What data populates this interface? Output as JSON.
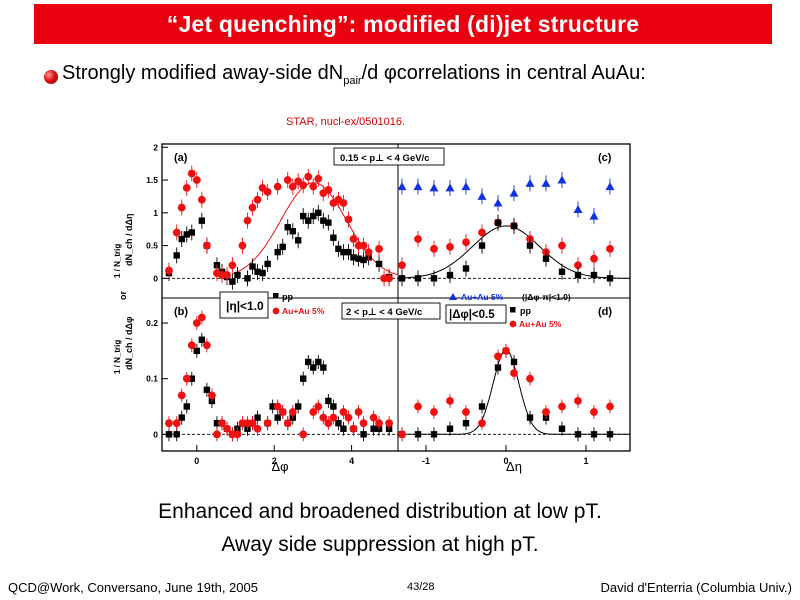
{
  "title": "“Jet quenching”: modified (di)jet structure",
  "bullet": {
    "text_before": "Strongly modified away-side dN",
    "sub": "pair",
    "text_after": "/d φcorrelations in central AuAu:"
  },
  "citation": "STAR, nucl-ex/0501016.",
  "conclusions": [
    "Enhanced and broadened distribution at low pT.",
    "Away side suppression at high pT."
  ],
  "footer": {
    "left": "QCD@Work, Conversano, June 19th, 2005",
    "center": "43/28",
    "right": "David d'Enterria (Columbia Univ.)"
  },
  "colors": {
    "title_bg": "#e8000e",
    "pp": "#000000",
    "auau": "#ee1111",
    "auau_tri": "#1133dd",
    "citation": "#d40000"
  },
  "chart_data": [
    {
      "type": "scatter",
      "panel": "(a)",
      "xlabel": "Δφ",
      "ylabel": "1/N_trig dN_ch/dΔη",
      "xlim": [
        -0.9,
        5.2
      ],
      "ylim": [
        -0.3,
        2.05
      ],
      "yticks": [
        "0",
        "0.5",
        "1",
        "1.5",
        "2"
      ],
      "annotation": "0.15 < p⊥ < 4 GeV/c",
      "series": [
        {
          "name": "pp",
          "marker": "square",
          "color": "#000000",
          "points": [
            [
              -0.72,
              0.08
            ],
            [
              -0.52,
              0.35
            ],
            [
              -0.39,
              0.6
            ],
            [
              -0.26,
              0.67
            ],
            [
              -0.13,
              0.7
            ],
            [
              0.13,
              0.88
            ],
            [
              0.26,
              0.5
            ],
            [
              0.52,
              0.2
            ],
            [
              0.65,
              0.1
            ],
            [
              0.78,
              0.02
            ],
            [
              0.92,
              -0.05
            ],
            [
              1.05,
              0.05
            ],
            [
              1.31,
              0.0
            ],
            [
              1.44,
              0.18
            ],
            [
              1.57,
              0.1
            ],
            [
              1.7,
              0.08
            ],
            [
              1.83,
              0.22
            ],
            [
              2.09,
              0.4
            ],
            [
              2.22,
              0.48
            ],
            [
              2.35,
              0.78
            ],
            [
              2.48,
              0.72
            ],
            [
              2.62,
              0.58
            ],
            [
              2.75,
              0.95
            ],
            [
              2.88,
              0.88
            ],
            [
              3.01,
              0.95
            ],
            [
              3.14,
              1.0
            ],
            [
              3.27,
              0.88
            ],
            [
              3.4,
              0.85
            ],
            [
              3.53,
              0.62
            ],
            [
              3.66,
              0.45
            ],
            [
              3.79,
              0.4
            ],
            [
              3.92,
              0.4
            ],
            [
              4.05,
              0.32
            ],
            [
              4.18,
              0.3
            ],
            [
              4.31,
              0.28
            ],
            [
              4.44,
              0.32
            ],
            [
              4.71,
              0.22
            ],
            [
              4.97,
              0.02
            ]
          ]
        },
        {
          "name": "Au+Au 5%",
          "marker": "circle",
          "color": "#ee1111",
          "fit": "gaussian",
          "points": [
            [
              -0.72,
              0.12
            ],
            [
              -0.52,
              0.7
            ],
            [
              -0.39,
              1.08
            ],
            [
              -0.26,
              1.38
            ],
            [
              -0.13,
              1.6
            ],
            [
              0.0,
              1.5
            ],
            [
              0.13,
              1.2
            ],
            [
              0.26,
              0.5
            ],
            [
              0.52,
              0.08
            ],
            [
              0.65,
              0.05
            ],
            [
              0.78,
              0.05
            ],
            [
              0.92,
              0.2
            ],
            [
              1.18,
              0.5
            ],
            [
              1.31,
              0.88
            ],
            [
              1.44,
              1.08
            ],
            [
              1.57,
              1.2
            ],
            [
              1.7,
              1.38
            ],
            [
              1.83,
              1.32
            ],
            [
              2.09,
              1.4
            ],
            [
              2.35,
              1.5
            ],
            [
              2.48,
              1.4
            ],
            [
              2.62,
              1.48
            ],
            [
              2.75,
              1.42
            ],
            [
              2.88,
              1.55
            ],
            [
              3.01,
              1.4
            ],
            [
              3.14,
              1.52
            ],
            [
              3.27,
              1.3
            ],
            [
              3.4,
              1.35
            ],
            [
              3.53,
              1.15
            ],
            [
              3.66,
              1.2
            ],
            [
              3.79,
              1.15
            ],
            [
              3.92,
              0.9
            ],
            [
              4.05,
              0.6
            ],
            [
              4.18,
              0.5
            ],
            [
              4.31,
              0.5
            ],
            [
              4.44,
              0.4
            ],
            [
              4.71,
              0.45
            ],
            [
              4.84,
              0.0
            ],
            [
              4.97,
              0.0
            ]
          ]
        }
      ]
    },
    {
      "type": "scatter",
      "panel": "(b)",
      "xlabel": "Δφ",
      "ylabel": "1/N_trig dN_ch/dΔφ",
      "xlim": [
        -0.9,
        5.2
      ],
      "ylim": [
        -0.03,
        0.245
      ],
      "xticks": [
        "0",
        "2",
        "4"
      ],
      "yticks": [
        "0",
        "0.1",
        "0.2"
      ],
      "annotation": "|η|<1.0",
      "series": [
        {
          "name": "pp",
          "marker": "square",
          "color": "#000000",
          "points": [
            [
              -0.72,
              0.0
            ],
            [
              -0.52,
              0.0
            ],
            [
              -0.39,
              0.03
            ],
            [
              -0.26,
              0.05
            ],
            [
              -0.13,
              0.1
            ],
            [
              0.0,
              0.15
            ],
            [
              0.13,
              0.17
            ],
            [
              0.26,
              0.08
            ],
            [
              0.39,
              0.06
            ],
            [
              0.52,
              0.02
            ],
            [
              0.65,
              0.02
            ],
            [
              0.78,
              0.01
            ],
            [
              0.92,
              0.0
            ],
            [
              1.05,
              0.01
            ],
            [
              1.31,
              0.01
            ],
            [
              1.44,
              0.02
            ],
            [
              1.57,
              0.03
            ],
            [
              1.83,
              0.02
            ],
            [
              1.96,
              0.05
            ],
            [
              2.09,
              0.03
            ],
            [
              2.22,
              0.04
            ],
            [
              2.35,
              0.02
            ],
            [
              2.48,
              0.03
            ],
            [
              2.62,
              0.05
            ],
            [
              2.75,
              0.1
            ],
            [
              2.88,
              0.13
            ],
            [
              3.01,
              0.12
            ],
            [
              3.14,
              0.13
            ],
            [
              3.27,
              0.12
            ],
            [
              3.4,
              0.06
            ],
            [
              3.53,
              0.05
            ],
            [
              3.66,
              0.02
            ],
            [
              3.79,
              0.01
            ],
            [
              4.05,
              0.01
            ],
            [
              4.31,
              0.0
            ],
            [
              4.57,
              0.01
            ],
            [
              4.71,
              0.01
            ],
            [
              4.97,
              0.01
            ]
          ]
        },
        {
          "name": "Au+Au 5%",
          "marker": "circle",
          "color": "#ee1111",
          "points": [
            [
              -0.72,
              0.02
            ],
            [
              -0.52,
              0.02
            ],
            [
              -0.39,
              0.07
            ],
            [
              -0.26,
              0.1
            ],
            [
              -0.13,
              0.16
            ],
            [
              0.0,
              0.2
            ],
            [
              0.13,
              0.21
            ],
            [
              0.26,
              0.16
            ],
            [
              0.39,
              0.07
            ],
            [
              0.52,
              0.0
            ],
            [
              0.65,
              0.02
            ],
            [
              0.78,
              0.01
            ],
            [
              0.92,
              0.0
            ],
            [
              1.05,
              0.0
            ],
            [
              1.18,
              0.02
            ],
            [
              1.31,
              0.02
            ],
            [
              1.44,
              0.02
            ],
            [
              1.57,
              0.01
            ],
            [
              1.83,
              0.02
            ],
            [
              2.09,
              0.05
            ],
            [
              2.22,
              0.04
            ],
            [
              2.35,
              0.02
            ],
            [
              2.48,
              0.04
            ],
            [
              2.75,
              0.0
            ],
            [
              3.01,
              0.04
            ],
            [
              3.14,
              0.05
            ],
            [
              3.27,
              0.03
            ],
            [
              3.4,
              0.02
            ],
            [
              3.53,
              0.03
            ],
            [
              3.79,
              0.04
            ],
            [
              3.92,
              0.03
            ],
            [
              4.05,
              0.01
            ],
            [
              4.18,
              0.04
            ],
            [
              4.31,
              0.02
            ],
            [
              4.57,
              0.03
            ],
            [
              4.71,
              0.02
            ],
            [
              4.97,
              0.02
            ]
          ]
        }
      ]
    },
    {
      "type": "scatter",
      "panel": "(c)",
      "xlabel": "Δη",
      "ylim": [
        -0.3,
        2.05
      ],
      "xlim": [
        -1.35,
        1.55
      ],
      "series": [
        {
          "name": "Au+Au 5% (|Δφ-π|<1.0)",
          "marker": "triangle",
          "color": "#1133dd",
          "points": [
            [
              -1.3,
              1.4
            ],
            [
              -1.1,
              1.4
            ],
            [
              -0.9,
              1.38
            ],
            [
              -0.7,
              1.38
            ],
            [
              -0.5,
              1.4
            ],
            [
              -0.3,
              1.25
            ],
            [
              -0.1,
              1.15
            ],
            [
              0.1,
              1.3
            ],
            [
              0.3,
              1.45
            ],
            [
              0.5,
              1.45
            ],
            [
              0.7,
              1.5
            ],
            [
              0.9,
              1.05
            ],
            [
              1.1,
              0.95
            ],
            [
              1.3,
              1.4
            ]
          ]
        },
        {
          "name": "Au+Au 5%",
          "marker": "circle",
          "color": "#ee1111",
          "points": [
            [
              -1.3,
              0.2
            ],
            [
              -1.1,
              0.6
            ],
            [
              -0.9,
              0.45
            ],
            [
              -0.7,
              0.48
            ],
            [
              -0.5,
              0.55
            ],
            [
              -0.3,
              0.7
            ],
            [
              -0.1,
              0.85
            ],
            [
              0.1,
              0.8
            ],
            [
              0.3,
              0.6
            ],
            [
              0.5,
              0.4
            ],
            [
              0.7,
              0.5
            ],
            [
              0.9,
              0.2
            ],
            [
              1.1,
              0.3
            ],
            [
              1.3,
              0.45
            ]
          ]
        },
        {
          "name": "pp",
          "marker": "square",
          "color": "#000000",
          "fit": "gaussian",
          "points": [
            [
              -1.3,
              0.0
            ],
            [
              -1.1,
              0.0
            ],
            [
              -0.9,
              0.0
            ],
            [
              -0.7,
              0.05
            ],
            [
              -0.5,
              0.15
            ],
            [
              -0.3,
              0.5
            ],
            [
              -0.1,
              0.85
            ],
            [
              0.1,
              0.8
            ],
            [
              0.3,
              0.5
            ],
            [
              0.5,
              0.3
            ],
            [
              0.7,
              0.1
            ],
            [
              0.9,
              0.05
            ],
            [
              1.1,
              0.05
            ],
            [
              1.3,
              0.0
            ]
          ]
        }
      ]
    },
    {
      "type": "scatter",
      "panel": "(d)",
      "xlabel": "Δη",
      "xlim": [
        -1.35,
        1.55
      ],
      "ylim": [
        -0.03,
        0.245
      ],
      "xticks": [
        "-1",
        "0",
        "1"
      ],
      "annotation": "|Δφ|<0.5",
      "series": [
        {
          "name": "pp",
          "marker": "square",
          "color": "#000000",
          "fit": "gaussian",
          "points": [
            [
              -1.3,
              0.0
            ],
            [
              -1.1,
              0.0
            ],
            [
              -0.9,
              0.0
            ],
            [
              -0.7,
              0.01
            ],
            [
              -0.5,
              0.02
            ],
            [
              -0.3,
              0.05
            ],
            [
              -0.1,
              0.12
            ],
            [
              0.0,
              0.15
            ],
            [
              0.1,
              0.13
            ],
            [
              0.3,
              0.03
            ],
            [
              0.5,
              0.03
            ],
            [
              0.7,
              0.01
            ],
            [
              0.9,
              0.0
            ],
            [
              1.1,
              0.0
            ],
            [
              1.3,
              0.0
            ]
          ]
        },
        {
          "name": "Au+Au 5%",
          "marker": "circle",
          "color": "#ee1111",
          "points": [
            [
              -1.3,
              0.0
            ],
            [
              -1.1,
              0.05
            ],
            [
              -0.9,
              0.04
            ],
            [
              -0.7,
              0.06
            ],
            [
              -0.5,
              0.04
            ],
            [
              -0.3,
              0.02
            ],
            [
              -0.1,
              0.14
            ],
            [
              0.0,
              0.15
            ],
            [
              0.1,
              0.11
            ],
            [
              0.3,
              0.1
            ],
            [
              0.5,
              0.04
            ],
            [
              0.7,
              0.05
            ],
            [
              0.9,
              0.06
            ],
            [
              1.1,
              0.04
            ],
            [
              1.3,
              0.05
            ]
          ]
        }
      ]
    }
  ],
  "legends": {
    "panel_a_box": "0.15 < p⊥ < 4 GeV/c",
    "panel_b_box": "2 < p⊥ < 4 GeV/c",
    "pp": "pp",
    "auau": "Au+Au 5%",
    "auau_tri": "Au+Au 5%",
    "auau_tri_cond": "(|Δφ-π|<1.0)",
    "eta_cut": "|η|<1.0",
    "dphi_cut": "|Δφ|<0.5",
    "or": "or",
    "yaxis_top": "dN_ch / dΔη",
    "yaxis_bottom": "dN_ch / dΔφ",
    "ntrig": "1 / N_trig"
  }
}
